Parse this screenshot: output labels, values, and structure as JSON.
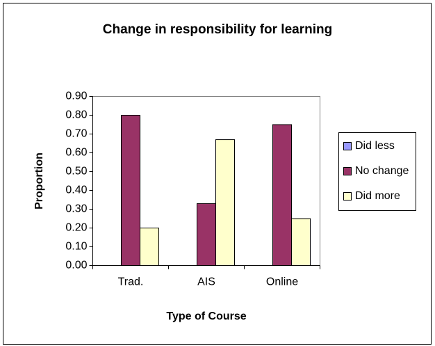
{
  "chart_data": {
    "type": "bar",
    "title": "Change in responsibility  for learning",
    "x_label": "Type of Course",
    "y_label": "Proportion",
    "categories": [
      "Trad.",
      "AIS",
      "Online"
    ],
    "series": [
      {
        "name": "Did less",
        "color": "#9999ff",
        "values": [
          0,
          0,
          0
        ]
      },
      {
        "name": "No change",
        "color": "#993366",
        "values": [
          0.8,
          0.33,
          0.75
        ]
      },
      {
        "name": "Did more",
        "color": "#ffffcc",
        "values": [
          0.2,
          0.67,
          0.25
        ]
      }
    ],
    "ylim": [
      0,
      0.9
    ],
    "yticks": [
      {
        "value": 0,
        "label": "0.00"
      },
      {
        "value": 0.1,
        "label": "0.10"
      },
      {
        "value": 0.2,
        "label": "0.20"
      },
      {
        "value": 0.3,
        "label": "0.30"
      },
      {
        "value": 0.4,
        "label": "0.40"
      },
      {
        "value": 0.5,
        "label": "0.50"
      },
      {
        "value": 0.6,
        "label": "0.60"
      },
      {
        "value": 0.7,
        "label": "0.70"
      },
      {
        "value": 0.8,
        "label": "0.80"
      },
      {
        "value": 0.9,
        "label": "0.90"
      }
    ],
    "legend": "right"
  }
}
